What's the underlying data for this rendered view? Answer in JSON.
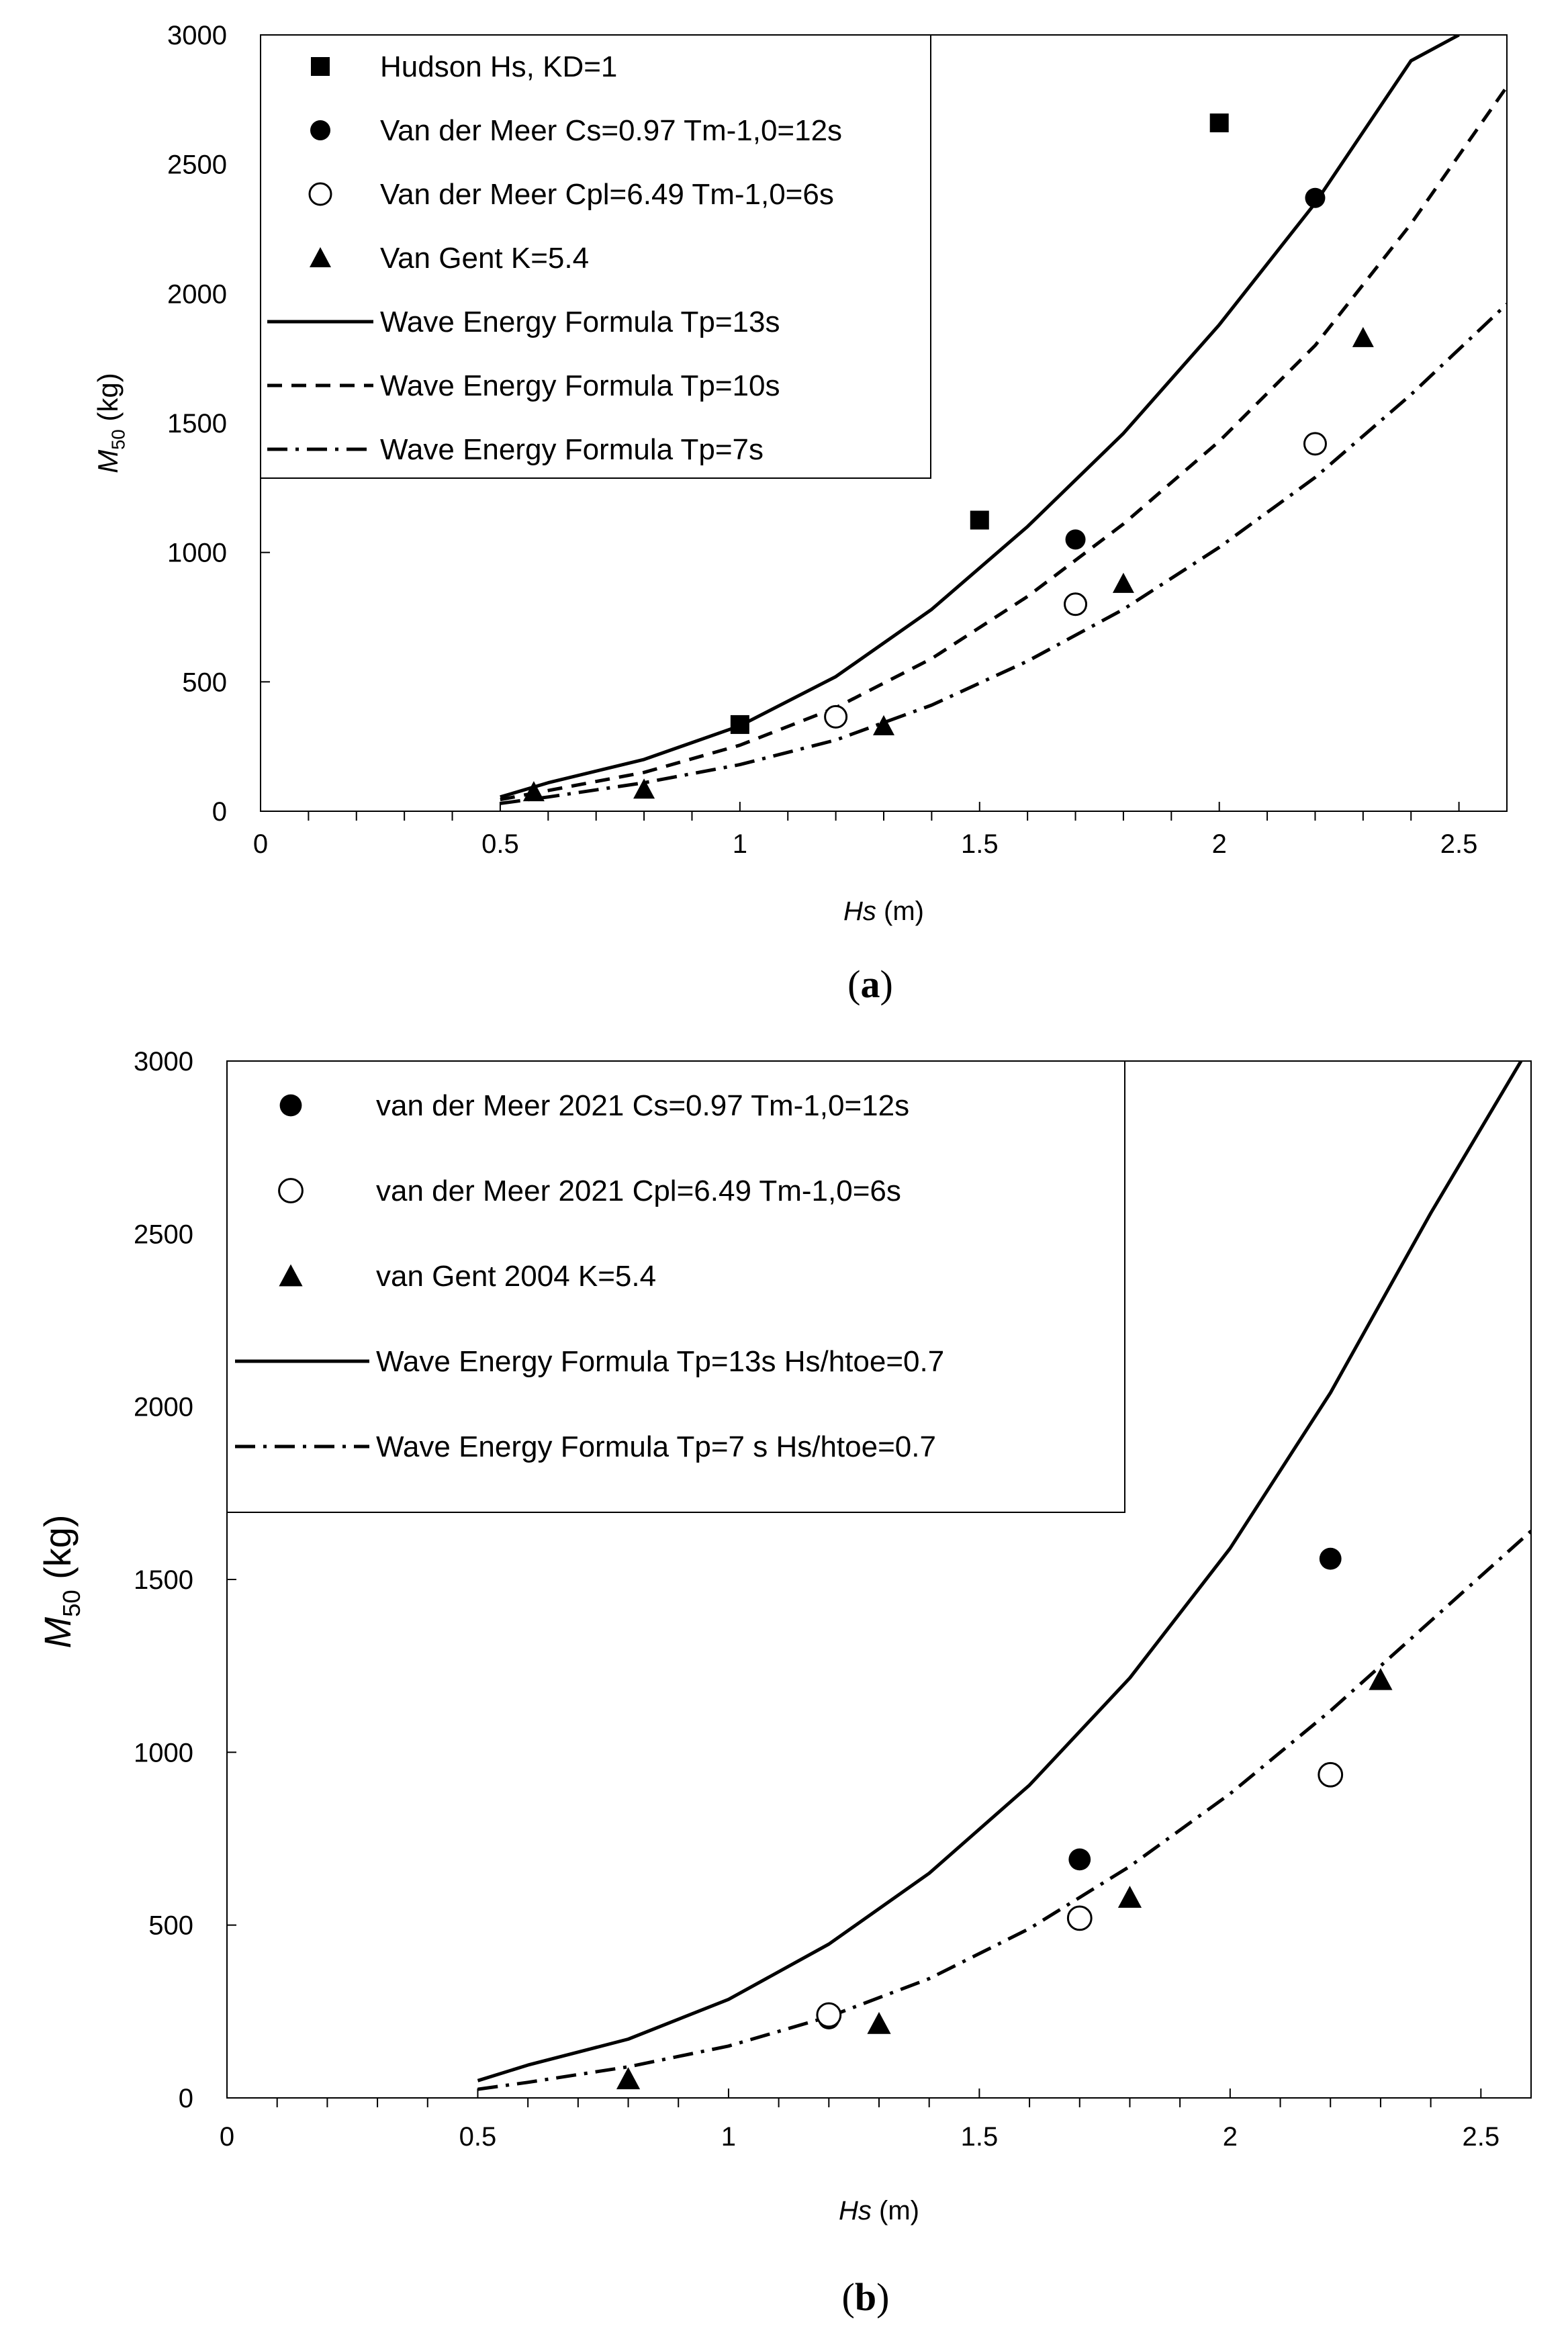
{
  "chart_data": [
    {
      "type": "scatter",
      "panel": "a",
      "caption_prefix": "(",
      "caption_letter": "a",
      "caption_suffix": ")",
      "xlabel_var": "Hs",
      "xlabel_unit": " (m)",
      "ylabel_main": "M",
      "ylabel_sub": "50",
      "ylabel_unit": " (kg)",
      "xlim": [
        0,
        2.6
      ],
      "ylim": [
        0,
        3000
      ],
      "x_ticks": [
        0,
        0.5,
        1,
        1.5,
        2,
        2.5
      ],
      "x_tick_labels": [
        "0",
        "0.5",
        "1",
        "1.5",
        "2",
        "2.5"
      ],
      "y_ticks": [
        0,
        500,
        1000,
        1500,
        2000,
        2500,
        3000
      ],
      "y_tick_labels": [
        "0",
        "500",
        "1000",
        "1500",
        "2000",
        "2500",
        "3000"
      ],
      "legend_position": "top-left",
      "series": [
        {
          "name": "Hudson Hs, KD=1",
          "marker": "square-filled",
          "x": [
            1.0,
            1.5,
            2.0
          ],
          "y": [
            335,
            1125,
            2660
          ]
        },
        {
          "name": "Van der Meer Cs=0.97 Tm-1,0=12s",
          "marker": "circle-filled",
          "x": [
            1.2,
            1.7,
            2.2
          ],
          "y": [
            360,
            1050,
            2370
          ]
        },
        {
          "name": "Van der Meer Cpl=6.49 Tm-1,0=6s",
          "marker": "circle-open",
          "x": [
            1.2,
            1.7,
            2.2
          ],
          "y": [
            365,
            800,
            1420
          ]
        },
        {
          "name": "Van Gent K=5.4",
          "marker": "triangle-filled",
          "x": [
            0.57,
            0.8,
            1.3,
            1.8,
            2.3
          ],
          "y": [
            75,
            85,
            330,
            880,
            1830
          ]
        },
        {
          "name": "Wave Energy Formula Tp=13s",
          "line": "solid",
          "x": [
            0.5,
            0.6,
            0.8,
            1.0,
            1.2,
            1.4,
            1.6,
            1.8,
            2.0,
            2.2,
            2.4,
            2.5
          ],
          "y": [
            55,
            110,
            200,
            330,
            520,
            780,
            1100,
            1460,
            1880,
            2350,
            2900,
            3000
          ]
        },
        {
          "name": "Wave Energy Formula Tp=10s",
          "line": "dash",
          "x": [
            0.5,
            0.6,
            0.8,
            1.0,
            1.2,
            1.4,
            1.6,
            1.8,
            2.0,
            2.2,
            2.4,
            2.6
          ],
          "y": [
            45,
            80,
            150,
            255,
            400,
            590,
            830,
            1110,
            1430,
            1800,
            2270,
            2800
          ]
        },
        {
          "name": "Wave Energy Formula Tp=7s",
          "line": "dashdot",
          "x": [
            0.5,
            0.6,
            0.8,
            1.0,
            1.2,
            1.4,
            1.6,
            1.8,
            2.0,
            2.2,
            2.4,
            2.6
          ],
          "y": [
            30,
            55,
            110,
            180,
            275,
            410,
            580,
            780,
            1020,
            1290,
            1610,
            1960
          ]
        }
      ]
    },
    {
      "type": "scatter",
      "panel": "b",
      "caption_prefix": "(",
      "caption_letter": "b",
      "caption_suffix": ")",
      "xlabel_var": "Hs",
      "xlabel_unit": " (m)",
      "ylabel_main": "M",
      "ylabel_sub": "50",
      "ylabel_unit": " (kg)",
      "xlim": [
        0,
        2.6
      ],
      "ylim": [
        0,
        3000
      ],
      "x_ticks": [
        0,
        0.5,
        1,
        1.5,
        2,
        2.5
      ],
      "x_tick_labels": [
        "0",
        "0.5",
        "1",
        "1.5",
        "2",
        "2.5"
      ],
      "y_ticks": [
        0,
        500,
        1000,
        1500,
        2000,
        2500,
        3000
      ],
      "y_tick_labels": [
        "0",
        "500",
        "1000",
        "1500",
        "2000",
        "2500",
        "3000"
      ],
      "legend_position": "top-left",
      "series": [
        {
          "name": "van der Meer 2021 Cs=0.97 Tm-1,0=12s",
          "marker": "circle-filled",
          "x": [
            1.2,
            1.7,
            2.2
          ],
          "y": [
            230,
            690,
            1560
          ]
        },
        {
          "name": "van der Meer 2021 Cpl=6.49 Tm-1,0=6s",
          "marker": "circle-open",
          "x": [
            1.2,
            1.7,
            2.2
          ],
          "y": [
            240,
            520,
            935
          ]
        },
        {
          "name": "van Gent 2004 K=5.4",
          "marker": "triangle-filled",
          "x": [
            0.8,
            1.3,
            1.8,
            2.3
          ],
          "y": [
            55,
            215,
            580,
            1210
          ]
        },
        {
          "name": "Wave Energy Formula Tp=13s Hs/htoe=0.7",
          "line": "solid",
          "x": [
            0.5,
            0.6,
            0.8,
            1.0,
            1.2,
            1.4,
            1.6,
            1.8,
            2.0,
            2.2,
            2.4,
            2.58
          ],
          "y": [
            50,
            95,
            170,
            285,
            445,
            650,
            905,
            1215,
            1590,
            2040,
            2560,
            3000
          ]
        },
        {
          "name": "Wave Energy Formula Tp=7 s  Hs/htoe=0.7",
          "line": "dashdot",
          "x": [
            0.5,
            0.6,
            0.8,
            1.0,
            1.2,
            1.4,
            1.6,
            1.8,
            2.0,
            2.2,
            2.4,
            2.6
          ],
          "y": [
            25,
            45,
            90,
            150,
            235,
            345,
            490,
            670,
            880,
            1120,
            1380,
            1640
          ]
        }
      ]
    }
  ]
}
